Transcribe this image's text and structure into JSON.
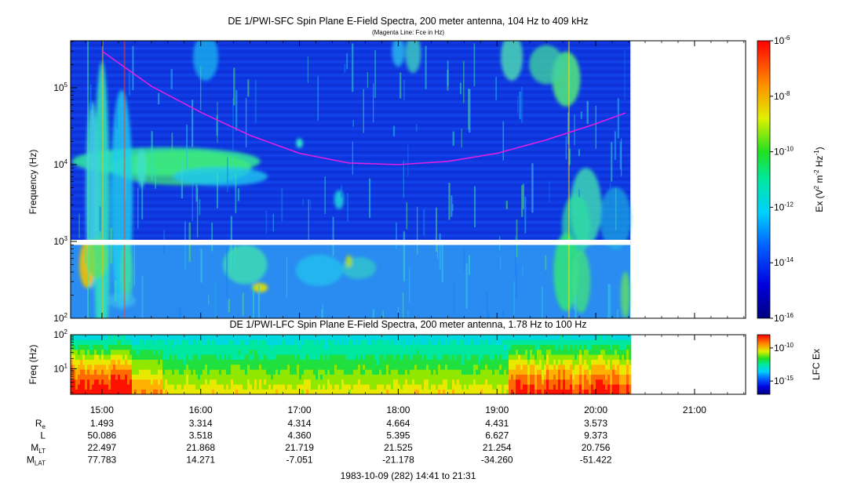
{
  "chart_data": [
    {
      "type": "heatmap",
      "title": "DE 1/PWI-SFC  Spin Plane E-Field Spectra, 200 meter antenna, 104 Hz to 409 kHz",
      "subtitle": "(Magenta Line: Fce in Hz)",
      "ylabel": "Frequency (Hz)",
      "yscale": "log",
      "ylim": [
        100,
        409000
      ],
      "y_ticks": [
        {
          "value": 100,
          "base": "10",
          "exp": "2"
        },
        {
          "value": 1000,
          "base": "10",
          "exp": "3"
        },
        {
          "value": 10000,
          "base": "10",
          "exp": "4"
        },
        {
          "value": 100000,
          "base": "10",
          "exp": "5"
        }
      ],
      "colorbar": {
        "label_prefix": "Ex (V",
        "label_sup1": "2",
        "label_mid": " m",
        "label_sup2": "-2",
        "label_mid2": " Hz",
        "label_sup3": "-1",
        "label_suffix": ")",
        "scale": "log",
        "range": [
          1e-16,
          1e-06
        ],
        "ticks": [
          {
            "value": 1e-06,
            "base": "10",
            "exp": "-6"
          },
          {
            "value": 1e-08,
            "base": "10",
            "exp": "-8"
          },
          {
            "value": 1e-10,
            "base": "10",
            "exp": "-10"
          },
          {
            "value": 1e-12,
            "base": "10",
            "exp": "-12"
          },
          {
            "value": 1e-14,
            "base": "10",
            "exp": "-14"
          },
          {
            "value": 1e-16,
            "base": "10",
            "exp": "-16"
          }
        ]
      },
      "overlay_line": {
        "color": "#e020e0",
        "x_hours": [
          15.0,
          15.5,
          16.0,
          16.5,
          17.0,
          17.5,
          18.0,
          18.5,
          19.0,
          19.5,
          20.0,
          20.3
        ],
        "y_hz": [
          300000,
          105000,
          48000,
          24000,
          14000,
          10500,
          10000,
          11000,
          14000,
          21000,
          34000,
          47000
        ]
      },
      "data_end_hour": 20.35,
      "gap_band_hz": [
        900,
        1050
      ]
    },
    {
      "type": "heatmap",
      "title": "DE 1/PWI-LFC  Spin Plane E-Field Spectra, 200 meter antenna, 1.78 Hz to 100 Hz",
      "ylabel": "Freq (Hz)",
      "yscale": "log",
      "ylim": [
        1.78,
        100
      ],
      "y_ticks": [
        {
          "value": 10,
          "base": "10",
          "exp": "1"
        },
        {
          "value": 100,
          "base": "10",
          "exp": "2"
        }
      ],
      "colorbar": {
        "label": "LFC Ex",
        "scale": "log",
        "range": [
          1e-17,
          1e-08
        ],
        "ticks": [
          {
            "value": 1e-10,
            "base": "10",
            "exp": "-10"
          },
          {
            "value": 1e-15,
            "base": "10",
            "exp": "-15"
          }
        ]
      },
      "data_end_hour": 20.35
    }
  ],
  "time_axis": {
    "range_hours": [
      14.683,
      21.517
    ],
    "ticks": [
      {
        "hour": 15,
        "label": "15:00"
      },
      {
        "hour": 16,
        "label": "16:00"
      },
      {
        "hour": 17,
        "label": "17:00"
      },
      {
        "hour": 18,
        "label": "18:00"
      },
      {
        "hour": 19,
        "label": "19:00"
      },
      {
        "hour": 20,
        "label": "20:00"
      },
      {
        "hour": 21,
        "label": "21:00"
      }
    ],
    "footer": "1983-10-09 (282) 14:41 to 21:31"
  },
  "ephemeris": {
    "rows": [
      {
        "label": "R",
        "sub": "e",
        "values": [
          "1.493",
          "3.314",
          "4.314",
          "4.664",
          "4.431",
          "3.573"
        ]
      },
      {
        "label": "L",
        "sub": "",
        "values": [
          "50.086",
          "3.518",
          "4.360",
          "5.395",
          "6.627",
          "9.373"
        ]
      },
      {
        "label": "M",
        "sub": "LT",
        "values": [
          "22.497",
          "21.868",
          "21.719",
          "21.525",
          "21.254",
          "20.756"
        ]
      },
      {
        "label": "M",
        "sub": "LAT",
        "values": [
          "77.783",
          "14.271",
          "-7.051",
          "-21.178",
          "-34.260",
          "-51.422"
        ]
      }
    ]
  }
}
